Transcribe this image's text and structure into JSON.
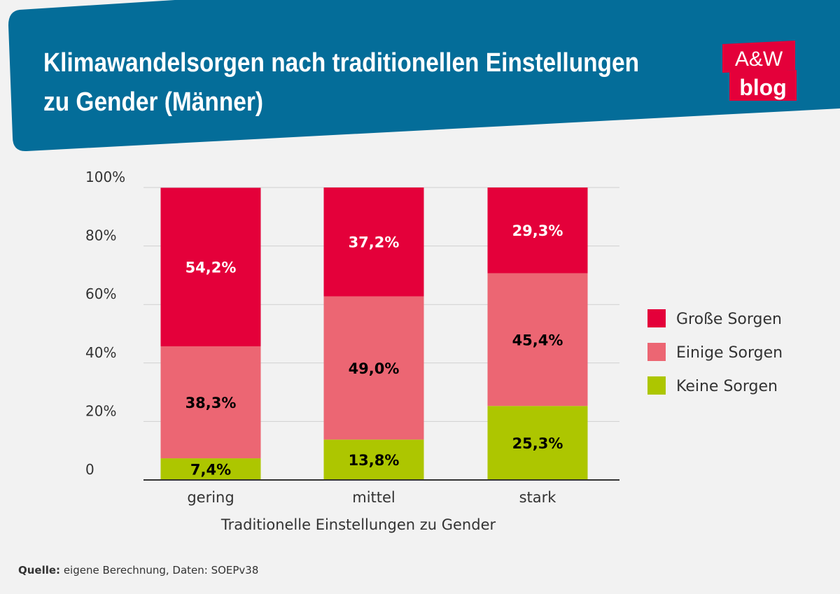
{
  "title_lines": [
    "Klimawandelsorgen nach traditionellen Einstellungen",
    "zu Gender (Männer)"
  ],
  "logo": {
    "line1": "A&W",
    "line2": "blog"
  },
  "source": {
    "label": "Quelle:",
    "text": " eigene Berechnung, Daten: SOEPv38"
  },
  "colors": {
    "header": "#046d99",
    "background": "#f2f2f2",
    "gross": "#e4003a",
    "einige": "#ec6673",
    "keine": "#adc600"
  },
  "chart_data": {
    "type": "bar",
    "stacked": true,
    "categories": [
      "gering",
      "mittel",
      "stark"
    ],
    "xlabel": "Traditionelle Einstellungen zu Gender",
    "ylabel": "",
    "ylim": [
      0,
      100
    ],
    "yticks": [
      "0",
      "20%",
      "40%",
      "60%",
      "80%",
      "100%"
    ],
    "grid": true,
    "legend": "right",
    "series": [
      {
        "name": "Keine Sorgen",
        "values": [
          7.4,
          13.8,
          25.3
        ],
        "labels": [
          "7,4%",
          "13,8%",
          "25,3%"
        ],
        "color": "#adc600",
        "label_color": "#000"
      },
      {
        "name": "Einige Sorgen",
        "values": [
          38.3,
          49.0,
          45.4
        ],
        "labels": [
          "38,3%",
          "49,0%",
          "45,4%"
        ],
        "color": "#ec6673",
        "label_color": "#000"
      },
      {
        "name": "Große Sorgen",
        "values": [
          54.2,
          37.2,
          29.3
        ],
        "labels": [
          "54,2%",
          "37,2%",
          "29,3%"
        ],
        "color": "#e4003a",
        "label_color": "#fff"
      }
    ],
    "legend_order": [
      "Große Sorgen",
      "Einige Sorgen",
      "Keine Sorgen"
    ]
  }
}
